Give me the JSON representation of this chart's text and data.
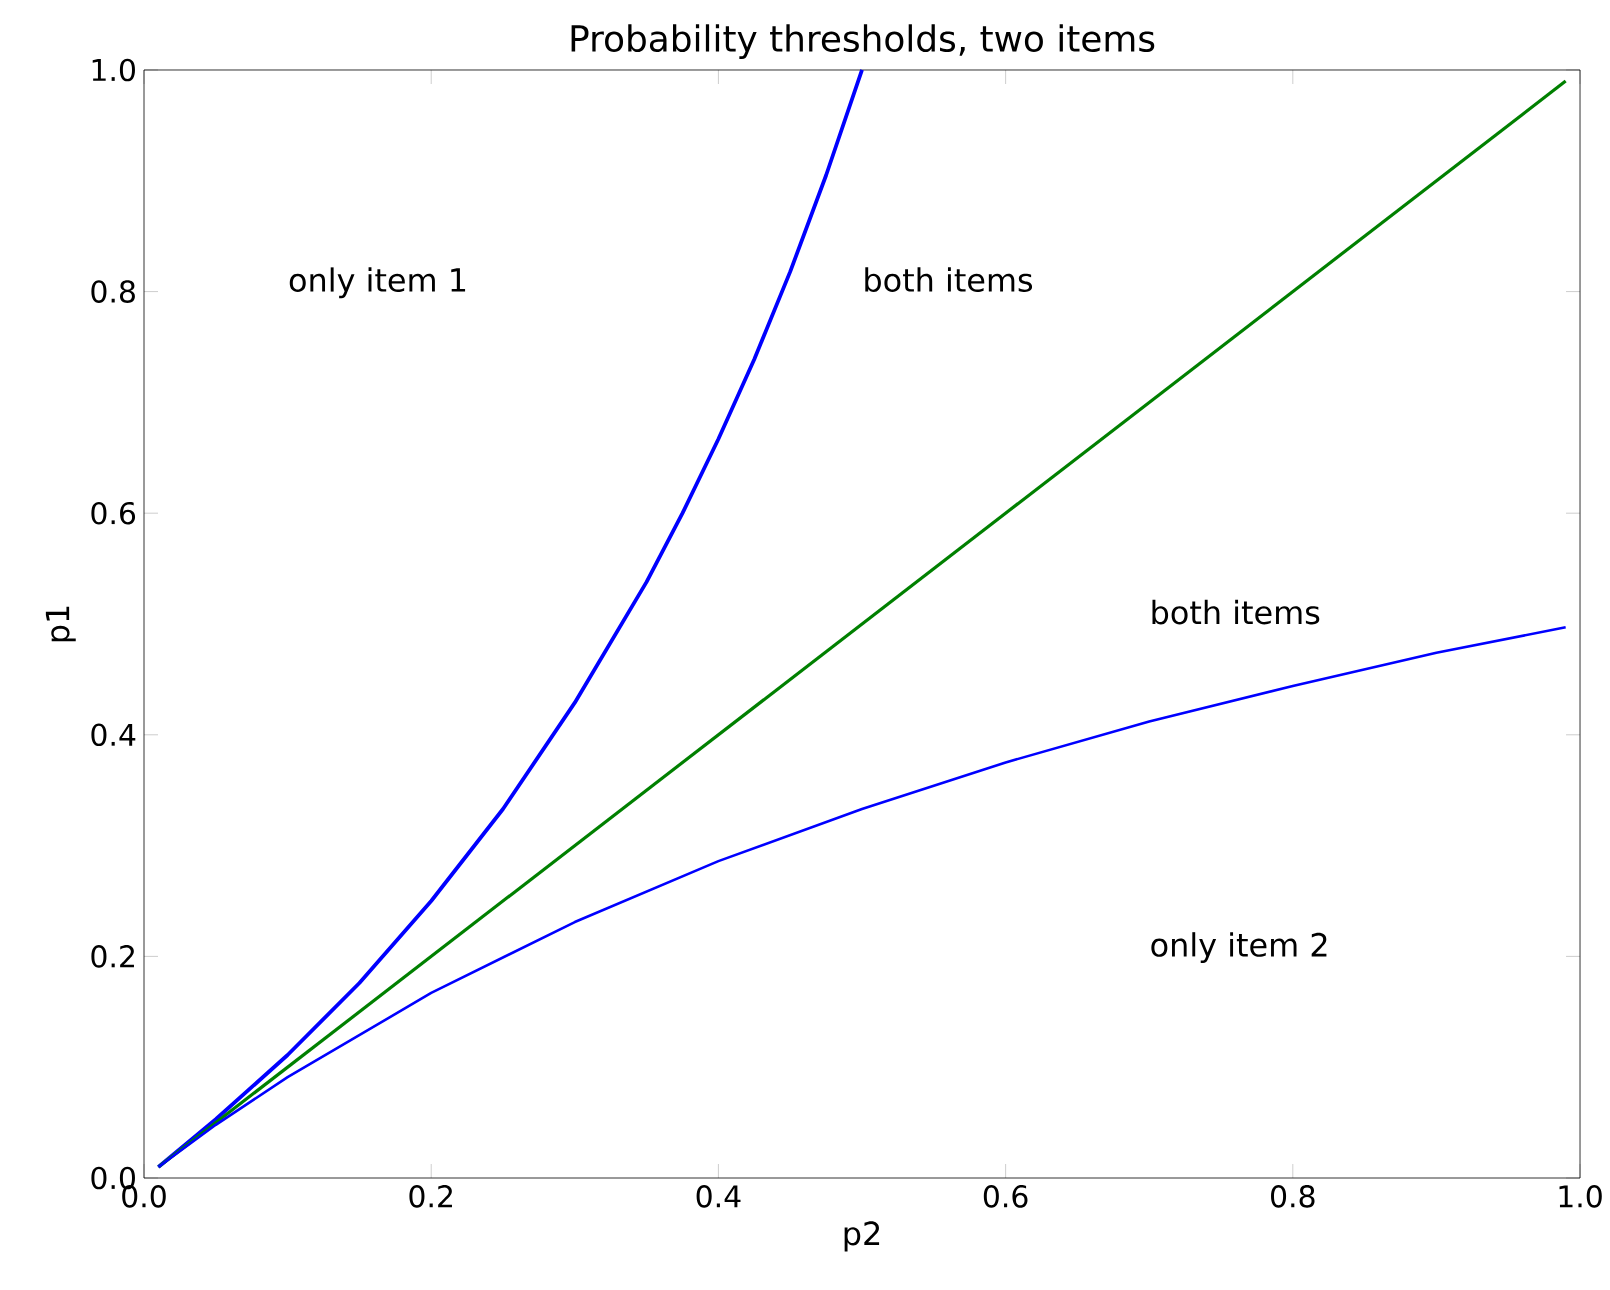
{
  "chart_data": {
    "type": "line",
    "title": "Probability thresholds, two items",
    "xlabel": "p2",
    "ylabel": "p1",
    "series": [
      {
        "color": "#0000ff",
        "x": [
          0.01,
          0.05,
          0.1,
          0.15,
          0.2,
          0.25,
          0.3,
          0.35,
          0.375,
          0.4,
          0.425,
          0.45,
          0.475,
          0.5
        ],
        "values": [
          0.01,
          0.053,
          0.111,
          0.176,
          0.25,
          0.333,
          0.429,
          0.538,
          0.6,
          0.667,
          0.739,
          0.818,
          0.905,
          1.0
        ]
      },
      {
        "color": "#008000",
        "x": [
          0.01,
          0.99
        ],
        "values": [
          0.01,
          0.99
        ]
      },
      {
        "color": "#0000ff",
        "x": [
          0.01,
          0.05,
          0.1,
          0.2,
          0.3,
          0.4,
          0.5,
          0.6,
          0.7,
          0.8,
          0.9,
          0.99
        ],
        "values": [
          0.01,
          0.048,
          0.091,
          0.167,
          0.231,
          0.286,
          0.333,
          0.375,
          0.412,
          0.444,
          0.474,
          0.497
        ]
      }
    ],
    "xlim": [
      0,
      1
    ],
    "ylim": [
      0,
      1
    ],
    "xticks": [
      {
        "value": 0,
        "label": "0.0"
      },
      {
        "value": 0.2,
        "label": "0.2"
      },
      {
        "value": 0.4,
        "label": "0.4"
      },
      {
        "value": 0.6,
        "label": "0.6"
      },
      {
        "value": 0.8,
        "label": "0.8"
      },
      {
        "value": 1,
        "label": "1.0"
      }
    ],
    "yticks": [
      {
        "value": 0,
        "label": "0.0"
      },
      {
        "value": 0.2,
        "label": "0.2"
      },
      {
        "value": 0.4,
        "label": "0.4"
      },
      {
        "value": 0.6,
        "label": "0.6"
      },
      {
        "value": 0.8,
        "label": "0.8"
      },
      {
        "value": 1,
        "label": "1.0"
      }
    ],
    "grid": false,
    "legend": false,
    "marker": "none",
    "line_style": "solid",
    "annotations": [
      "only item 1",
      "both items",
      "both items",
      "only item 2"
    ]
  }
}
